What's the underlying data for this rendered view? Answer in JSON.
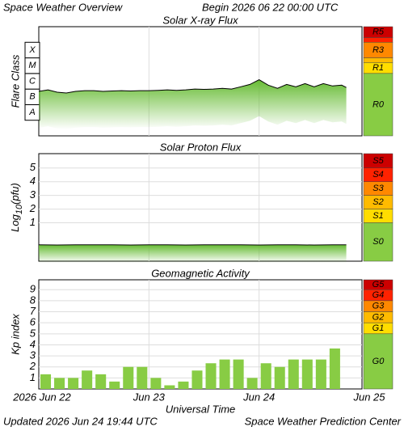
{
  "header": {
    "title": "Space Weather Overview",
    "begin": "Begin 2026 06 22 00:00 UTC"
  },
  "footer": {
    "updated": "Updated 2026 Jun 24 19:44 UTC",
    "source": "Space Weather Prediction Center"
  },
  "x_axis": {
    "label": "Universal Time",
    "xlim": [
      0,
      72
    ],
    "xticks": [
      {
        "value": 0,
        "label": "2026 Jun 22"
      },
      {
        "value": 24,
        "label": "Jun 23"
      },
      {
        "value": 48,
        "label": "Jun 24"
      },
      {
        "value": 72,
        "label": "Jun 25"
      }
    ]
  },
  "chart_data": [
    {
      "type": "line",
      "title": "Solar X-ray Flux",
      "ylabel": "Flare Class",
      "ylim": [
        -9,
        -2
      ],
      "yticks": [
        {
          "value": -7.5,
          "label": "A"
        },
        {
          "value": -6.5,
          "label": "B"
        },
        {
          "value": -5.5,
          "label": "C"
        },
        {
          "value": -4.5,
          "label": "M"
        },
        {
          "value": -3.5,
          "label": "X"
        }
      ],
      "x": [
        0,
        2,
        4,
        6,
        8,
        10,
        12,
        14,
        16,
        18,
        20,
        22,
        24,
        26,
        28,
        30,
        32,
        34,
        36,
        38,
        40,
        42,
        44,
        46,
        48,
        50,
        52,
        54,
        56,
        58,
        60,
        62,
        64,
        66,
        67
      ],
      "values": [
        -6.15,
        -6.05,
        -6.2,
        -6.25,
        -6.15,
        -6.1,
        -6.1,
        -6.15,
        -6.12,
        -6.1,
        -6.12,
        -6.1,
        -6.1,
        -6.08,
        -6.05,
        -6.08,
        -6.05,
        -6.0,
        -6.02,
        -6.0,
        -5.95,
        -6.0,
        -5.85,
        -5.7,
        -5.4,
        -5.75,
        -5.95,
        -5.7,
        -5.85,
        -5.65,
        -5.85,
        -5.65,
        -5.8,
        -5.75,
        -5.9
      ],
      "color": "#000000",
      "fill_color": "#66bb33",
      "scale": [
        {
          "label": "R5",
          "color": "#cc0000",
          "range": [
            -2.7,
            -2
          ]
        },
        {
          "label": null,
          "color": "#ff2200",
          "range": [
            -3,
            -2.7
          ]
        },
        {
          "label": "R3",
          "color": "#ff8800",
          "range": [
            -4,
            -3
          ]
        },
        {
          "label": null,
          "color": "#ffbb00",
          "range": [
            -4.3,
            -4
          ]
        },
        {
          "label": "R1",
          "color": "#ffdd00",
          "range": [
            -5,
            -4.3
          ]
        },
        {
          "label": "R0",
          "color": "#88cc44",
          "range": [
            -9,
            -5
          ]
        }
      ]
    },
    {
      "type": "line",
      "title": "Solar Proton Flux",
      "ylabel": {
        "base": "Log",
        "sub": "10",
        "unit": "(pfu)"
      },
      "ylim": [
        -1.8,
        6.05
      ],
      "yticks": [
        1,
        2,
        3,
        4,
        5
      ],
      "x": [
        0,
        4,
        8,
        12,
        16,
        20,
        24,
        28,
        32,
        36,
        40,
        44,
        48,
        52,
        56,
        60,
        64,
        67
      ],
      "values": [
        -0.6,
        -0.62,
        -0.6,
        -0.61,
        -0.6,
        -0.62,
        -0.61,
        -0.6,
        -0.62,
        -0.61,
        -0.6,
        -0.61,
        -0.62,
        -0.6,
        -0.61,
        -0.62,
        -0.6,
        -0.61
      ],
      "color": "#000000",
      "fill_color": "#66bb33",
      "scale": [
        {
          "label": "S5",
          "color": "#cc0000",
          "range": [
            5,
            6.05
          ]
        },
        {
          "label": "S4",
          "color": "#ff2200",
          "range": [
            4,
            5
          ]
        },
        {
          "label": "S3",
          "color": "#ff8800",
          "range": [
            3,
            4
          ]
        },
        {
          "label": "S2",
          "color": "#ffbb00",
          "range": [
            2,
            3
          ]
        },
        {
          "label": "S1",
          "color": "#ffdd00",
          "range": [
            1,
            2
          ]
        },
        {
          "label": "S0",
          "color": "#88cc44",
          "range": [
            -1.8,
            1
          ]
        }
      ]
    },
    {
      "type": "bar",
      "title": "Geomagnetic Activity",
      "ylabel": "Kp index",
      "ylim": [
        0,
        9.9
      ],
      "yticks": [
        1,
        2,
        3,
        4,
        5,
        6,
        7,
        8,
        9
      ],
      "x": [
        0,
        3,
        6,
        9,
        12,
        15,
        18,
        21,
        24,
        27,
        30,
        33,
        36,
        39,
        42,
        45,
        48,
        51,
        54,
        57,
        60,
        63
      ],
      "values": [
        1.33,
        1,
        1,
        1.67,
        1.33,
        0.67,
        2,
        2,
        1,
        0.33,
        0.67,
        1.67,
        2.33,
        2.67,
        2.67,
        1,
        2.33,
        2,
        2.67,
        2.67,
        2.67,
        3.67
      ],
      "color": "#88cc44",
      "scale": [
        {
          "label": "G5",
          "color": "#cc0000",
          "range": [
            9,
            9.9
          ]
        },
        {
          "label": "G4",
          "color": "#ff2200",
          "range": [
            8,
            9
          ]
        },
        {
          "label": "G3",
          "color": "#ff8800",
          "range": [
            7,
            8
          ]
        },
        {
          "label": "G2",
          "color": "#ffbb00",
          "range": [
            6,
            7
          ]
        },
        {
          "label": "G1",
          "color": "#ffdd00",
          "range": [
            5,
            6
          ]
        },
        {
          "label": "G0",
          "color": "#88cc44",
          "range": [
            0,
            5
          ]
        }
      ]
    }
  ]
}
